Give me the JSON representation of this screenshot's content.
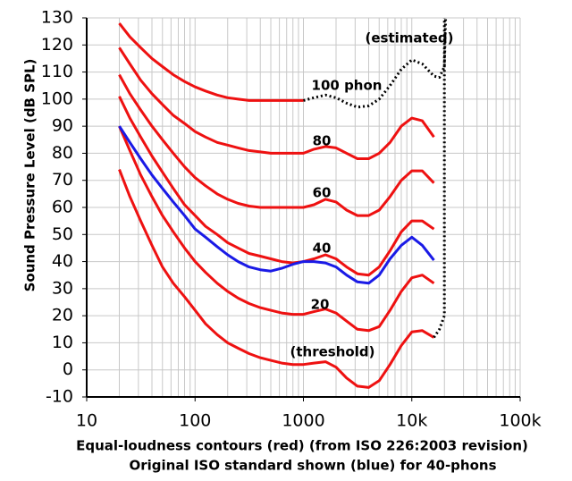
{
  "chart_data": {
    "type": "line",
    "y_label": "Sound Pressure Level (dB SPL)",
    "x_label": [
      "Equal-loudness contours (red) (from ISO 226:2003 revision)",
      "Original ISO standard shown (blue) for 40-phons"
    ],
    "xlog": true,
    "grid": true,
    "xlim": [
      10,
      100000
    ],
    "xticks": [
      10,
      100,
      1000,
      {
        "value": 10000,
        "label": "10k"
      },
      {
        "value": 100000,
        "label": "100k"
      }
    ],
    "ylim": [
      -10,
      130
    ],
    "yticks": [
      -10,
      0,
      10,
      20,
      30,
      40,
      50,
      60,
      70,
      80,
      90,
      100,
      110,
      120,
      130
    ],
    "x": [
      20,
      25,
      31.5,
      40,
      50,
      63,
      80,
      100,
      125,
      160,
      200,
      250,
      315,
      400,
      500,
      630,
      800,
      1000,
      1250,
      1600,
      2000,
      2500,
      3150,
      4000,
      5000,
      6300,
      8000,
      10000,
      12500,
      16000
    ],
    "series": [
      {
        "color": "#ee1111",
        "values": [
          74,
          64,
          55,
          46,
          38,
          32,
          27,
          22,
          17,
          13,
          10,
          8,
          6,
          4.5,
          3.5,
          2.5,
          2,
          2,
          2.5,
          3,
          1,
          -3,
          -6,
          -6.5,
          -4,
          2,
          9,
          14,
          14.5,
          12
        ]
      },
      {
        "color": "#ee1111",
        "values": [
          90,
          81,
          72,
          64,
          57,
          51,
          45,
          40,
          36,
          32,
          29,
          26.5,
          24.5,
          23,
          22,
          21,
          20.5,
          20.5,
          21.5,
          22.5,
          21,
          18,
          15,
          14.5,
          16,
          22,
          29,
          34,
          35,
          32
        ]
      },
      {
        "color": "#ee1111",
        "values": [
          101,
          93,
          86,
          79,
          73,
          67,
          61,
          57,
          53,
          50,
          47,
          45,
          43,
          42,
          41,
          40,
          39.5,
          40,
          41,
          42.5,
          41,
          38,
          35.5,
          35,
          38,
          44,
          51,
          55,
          55,
          52
        ]
      },
      {
        "color": "#ee1111",
        "values": [
          109,
          102,
          96,
          90,
          85,
          80,
          75,
          71,
          68,
          65,
          63,
          61.5,
          60.5,
          60,
          60,
          60,
          60,
          60,
          61,
          63,
          62,
          59,
          57,
          57,
          59,
          64,
          70,
          73.5,
          73.5,
          69
        ]
      },
      {
        "color": "#ee1111",
        "values": [
          119,
          113,
          107,
          102,
          98,
          94,
          91,
          88,
          86,
          84,
          83,
          82,
          81,
          80.5,
          80,
          80,
          80,
          80,
          81.5,
          82.5,
          82,
          80,
          78,
          78,
          80,
          84,
          90,
          93,
          92,
          86
        ]
      },
      {
        "color": "#ee1111",
        "values": [
          128,
          123,
          119,
          115,
          112,
          109,
          106.5,
          104.5,
          103,
          101.5,
          100.5,
          100,
          99.5,
          99.5,
          99.5,
          99.5,
          99.5,
          99.5,
          null,
          null,
          null,
          null,
          null,
          null,
          null,
          null,
          null,
          null,
          null,
          null
        ]
      },
      {
        "color": "#1a1ae6",
        "values": [
          90,
          84,
          78,
          72,
          67,
          62,
          57,
          52,
          49,
          45.5,
          42.5,
          40,
          38,
          37,
          36.5,
          37.5,
          39,
          40,
          40,
          39.5,
          38,
          35,
          32.5,
          32,
          35,
          41,
          46,
          49,
          46,
          40.5
        ]
      },
      {
        "color": "#000000",
        "dash": true,
        "x": [
          1000,
          1250,
          1600,
          2000,
          2500,
          3150,
          4000,
          5000,
          6300,
          8000,
          10000,
          12500,
          16000,
          18000,
          20000,
          20500
        ],
        "values": [
          99.5,
          100.5,
          101.5,
          100.5,
          98.5,
          97,
          97.5,
          100,
          105,
          111,
          114.5,
          113,
          108.5,
          108,
          112,
          130
        ]
      },
      {
        "color": "#000000",
        "dash": true,
        "x": [
          16000,
          18000,
          20000,
          20000
        ],
        "values": [
          12,
          15,
          20,
          130
        ]
      }
    ],
    "annotations": [
      "(estimated)",
      "100 phon",
      "80",
      "60",
      "40",
      "20",
      "(threshold)"
    ]
  }
}
